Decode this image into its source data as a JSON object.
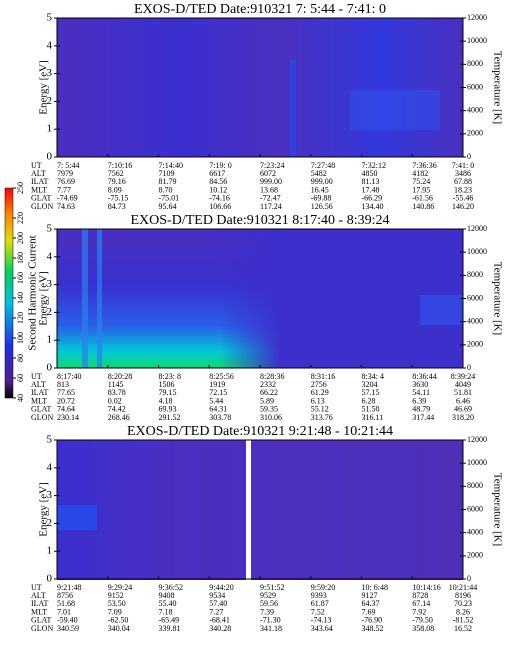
{
  "chart_data": [
    {
      "type": "heatmap",
      "title": "EXOS-D/TED   Date:910321  7: 5:44 - 7:41: 0",
      "ylabel": "Energy [eV]",
      "y2label": "Temperature [K]",
      "ylim": [
        0,
        5
      ],
      "yticks": [
        0,
        1,
        2,
        3,
        4,
        5
      ],
      "y2lim": [
        0,
        12000
      ],
      "y2ticks": [
        0,
        2000,
        4000,
        6000,
        8000,
        10000,
        12000
      ],
      "ephemeris": {
        "labels": [
          "UT",
          "ALT",
          "ILAT",
          "MLT",
          "GLAT",
          "GLON"
        ],
        "rows": [
          [
            "7: 5:44",
            "7:10:16",
            "7:14:40",
            "7:19: 0",
            "7:23:24",
            "7:27:48",
            "7:32:12",
            "7:36:36",
            "7:41: 0"
          ],
          [
            "7979",
            "7562",
            "7109",
            "6617",
            "6072",
            "5482",
            "4850",
            "4182",
            "3486"
          ],
          [
            "76.69",
            "79.16",
            "81.79",
            "84.56",
            "999.00",
            "999.00",
            "81.13",
            "75.24",
            "67.88"
          ],
          [
            "7.77",
            "8.09",
            "8.70",
            "10.12",
            "13.68",
            "16.45",
            "17.48",
            "17.95",
            "18.23"
          ],
          [
            "-74.69",
            "-75.15",
            "-75.01",
            "-74.16",
            "-72.47",
            "-69.88",
            "-66.29",
            "-61.56",
            "-55.46"
          ],
          [
            "74.63",
            "84.73",
            "95.64",
            "106.66",
            "117.24",
            "126.56",
            "134.40",
            "140.86",
            "146.20"
          ]
        ]
      }
    },
    {
      "type": "heatmap",
      "title": "EXOS-D/TED   Date:910321  8:17:40 - 8:39:24",
      "ylabel": "Energy [eV]",
      "y2label": "Temperature [K]",
      "ylim": [
        0,
        5
      ],
      "yticks": [
        0,
        1,
        2,
        3,
        4,
        5
      ],
      "y2lim": [
        0,
        12000
      ],
      "y2ticks": [
        0,
        2000,
        4000,
        6000,
        8000,
        10000,
        12000
      ],
      "ephemeris": {
        "labels": [
          "UT",
          "ALT",
          "ILAT",
          "MLT",
          "GLAT",
          "GLON"
        ],
        "rows": [
          [
            "8:17:40",
            "8:20:28",
            "8:23: 8",
            "8:25:56",
            "8:28:36",
            "8:31:16",
            "8:34: 4",
            "8:36:44",
            "8:39:24"
          ],
          [
            "813",
            "1145",
            "1506",
            "1919",
            "2332",
            "2756",
            "3204",
            "3630",
            "4049"
          ],
          [
            "77.65",
            "83.78",
            "79.15",
            "72.15",
            "66.22",
            "61.29",
            "57.15",
            "54.11",
            "51.81"
          ],
          [
            "20.72",
            "0.02",
            "4.18",
            "5.44",
            "5.89",
            "6.13",
            "6.28",
            "6.39",
            "6.46"
          ],
          [
            "74.64",
            "74.42",
            "69.93",
            "64.31",
            "59.35",
            "55.12",
            "51.50",
            "48.79",
            "46.69"
          ],
          [
            "230.14",
            "268.46",
            "291.52",
            "303.78",
            "310.06",
            "313.76",
            "316.11",
            "317.44",
            "318.20"
          ]
        ]
      },
      "colorbar": {
        "label": "Second Harmonic Current",
        "lim": [
          40,
          250
        ],
        "ticks": [
          40,
          60,
          80,
          100,
          120,
          140,
          160,
          180,
          200,
          220,
          250
        ]
      }
    },
    {
      "type": "heatmap",
      "title": "EXOS-D/TED   Date:910321  9:21:48 - 10:21:44",
      "ylabel": "Energy [eV]",
      "y2label": "Temperature [K]",
      "ylim": [
        0,
        5
      ],
      "yticks": [
        0,
        1,
        2,
        3,
        4,
        5
      ],
      "y2lim": [
        0,
        12000
      ],
      "y2ticks": [
        0,
        2000,
        4000,
        6000,
        8000,
        10000,
        12000
      ],
      "ephemeris": {
        "labels": [
          "UT",
          "ALT",
          "ILAT",
          "MLT",
          "GLAT",
          "GLON"
        ],
        "rows": [
          [
            "9:21:48",
            "9:29:24",
            "9:36:52",
            "9:44:20",
            "9:51:52",
            "9:59:20",
            "10: 6:48",
            "10:14:16",
            "10:21:44"
          ],
          [
            "8756",
            "9152",
            "9408",
            "9534",
            "9529",
            "9393",
            "9127",
            "8728",
            "8196"
          ],
          [
            "51.68",
            "53.50",
            "55.40",
            "57.40",
            "59.56",
            "61.87",
            "64.37",
            "67.14",
            "70.23"
          ],
          [
            "7.01",
            "7.09",
            "7.18",
            "7.27",
            "7.39",
            "7.52",
            "7.69",
            "7.92",
            "8.26"
          ],
          [
            "-59.40",
            "-62.50",
            "-65.49",
            "-68.41",
            "-71.30",
            "-74.13",
            "-76.90",
            "-79.50",
            "-81.52"
          ],
          [
            "340.59",
            "340.04",
            "339.81",
            "340.28",
            "341.18",
            "343.64",
            "348.52",
            "358.08",
            "16.52"
          ]
        ]
      }
    }
  ]
}
